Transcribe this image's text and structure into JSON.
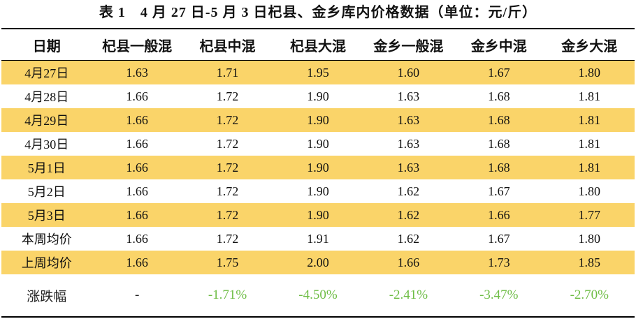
{
  "title": "表 1　4 月 27 日-5 月 3 日杞县、金乡库内价格数据（单位：元/斤）",
  "table": {
    "header": [
      "日期",
      "杞县一般混",
      "杞县中混",
      "杞县大混",
      "金乡一般混",
      "金乡中混",
      "金乡大混"
    ],
    "rows": [
      [
        "4月27日",
        "1.63",
        "1.71",
        "1.95",
        "1.60",
        "1.67",
        "1.80"
      ],
      [
        "4月28日",
        "1.66",
        "1.72",
        "1.90",
        "1.63",
        "1.68",
        "1.81"
      ],
      [
        "4月29日",
        "1.66",
        "1.72",
        "1.90",
        "1.63",
        "1.68",
        "1.81"
      ],
      [
        "4月30日",
        "1.66",
        "1.72",
        "1.90",
        "1.63",
        "1.68",
        "1.81"
      ],
      [
        "5月1日",
        "1.66",
        "1.72",
        "1.90",
        "1.63",
        "1.68",
        "1.81"
      ],
      [
        "5月2日",
        "1.66",
        "1.72",
        "1.90",
        "1.62",
        "1.67",
        "1.80"
      ],
      [
        "5月3日",
        "1.66",
        "1.72",
        "1.90",
        "1.62",
        "1.66",
        "1.77"
      ],
      [
        "本周均价",
        "1.66",
        "1.72",
        "1.91",
        "1.62",
        "1.67",
        "1.80"
      ],
      [
        "上周均价",
        "1.66",
        "1.75",
        "2.00",
        "1.66",
        "1.73",
        "1.85"
      ],
      [
        "涨跌幅",
        "-",
        "-1.71%",
        "-4.50%",
        "-2.41%",
        "-3.47%",
        "-2.70%"
      ]
    ]
  }
}
